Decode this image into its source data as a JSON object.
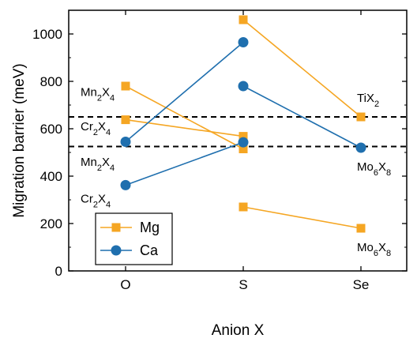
{
  "chart_data": {
    "type": "line",
    "title": "",
    "xlabel": "Anion X",
    "ylabel": "Migration barrier (meV)",
    "categories": [
      "O",
      "S",
      "Se"
    ],
    "ylim": [
      0,
      1100
    ],
    "yticks": [
      0,
      200,
      400,
      600,
      800,
      1000
    ],
    "grid": false,
    "legend_position": "bottom-left",
    "legend": [
      {
        "label": "Mg",
        "color": "#f5a623",
        "marker": "square"
      },
      {
        "label": "Ca",
        "color": "#1f6fae",
        "marker": "circle"
      }
    ],
    "colors": {
      "Mg": "#f5a623",
      "Ca": "#1f6fae"
    },
    "reference_lines": [
      650,
      525
    ],
    "series": [
      {
        "group": "Mg",
        "points": [
          {
            "x": "O",
            "y": 780
          },
          {
            "x": "S",
            "y": 515
          }
        ]
      },
      {
        "group": "Mg",
        "points": [
          {
            "x": "O",
            "y": 638
          },
          {
            "x": "S",
            "y": 568
          }
        ]
      },
      {
        "group": "Mg",
        "points": [
          {
            "x": "S",
            "y": 1060
          },
          {
            "x": "Se",
            "y": 650
          }
        ]
      },
      {
        "group": "Mg",
        "points": [
          {
            "x": "S",
            "y": 270
          },
          {
            "x": "Se",
            "y": 180
          }
        ]
      },
      {
        "group": "Ca",
        "points": [
          {
            "x": "O",
            "y": 545
          },
          {
            "x": "S",
            "y": 965
          }
        ]
      },
      {
        "group": "Ca",
        "points": [
          {
            "x": "O",
            "y": 362
          },
          {
            "x": "S",
            "y": 543
          }
        ]
      },
      {
        "group": "Ca",
        "points": [
          {
            "x": "S",
            "y": 780
          },
          {
            "x": "Se",
            "y": 520
          }
        ]
      }
    ],
    "annotations": [
      {
        "base": "Mn",
        "sub1": "2",
        "mid": "X",
        "sub2": "4",
        "at_x": "O",
        "at_y": 755
      },
      {
        "base": "Cr",
        "sub1": "2",
        "mid": "X",
        "sub2": "4",
        "at_x": "O",
        "at_y": 610
      },
      {
        "base": "Mn",
        "sub1": "2",
        "mid": "X",
        "sub2": "4",
        "at_x": "O",
        "at_y": 460
      },
      {
        "base": "Cr",
        "sub1": "2",
        "mid": "X",
        "sub2": "4",
        "at_x": "O",
        "at_y": 305
      },
      {
        "base": "Ti",
        "sub1": "",
        "mid": "X",
        "sub2": "2",
        "at_x": "Se",
        "at_y": 730
      },
      {
        "base": "Mo",
        "sub1": "6",
        "mid": "X",
        "sub2": "8",
        "at_x": "Se",
        "at_y": 440
      },
      {
        "base": "Mo",
        "sub1": "6",
        "mid": "X",
        "sub2": "8",
        "at_x": "Se",
        "at_y": 100
      }
    ]
  }
}
